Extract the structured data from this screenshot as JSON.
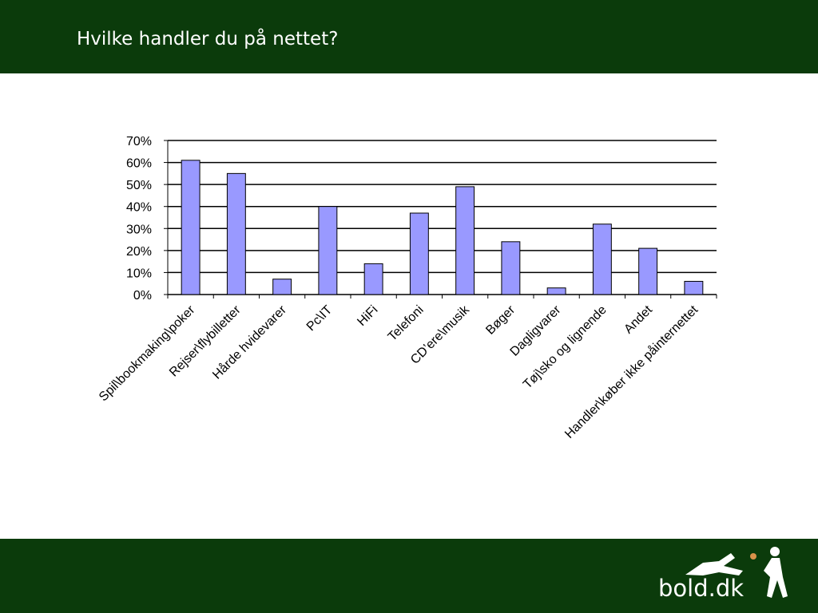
{
  "chart_data": {
    "type": "bar",
    "title": "Hvilke handler du på nettet?",
    "categories": [
      "Spil\\bookmaking\\poker",
      "Rejser\\flybilletter",
      "Hårde hvidevarer",
      "Pc\\IT",
      "HiFi",
      "Telefoni",
      "CD’ere\\musik",
      "Bøger",
      "Dagligvarer",
      "Tøj\\sko og lignende",
      "Andet",
      "Handler\\køber ikke påinternettet"
    ],
    "values": [
      61,
      55,
      7,
      40,
      14,
      37,
      49,
      24,
      3,
      32,
      21,
      6
    ],
    "color": "#9999ff",
    "ylim": [
      0,
      70
    ],
    "yticks": [
      {
        "value": 0,
        "label": "0%"
      },
      {
        "value": 10,
        "label": "10%"
      },
      {
        "value": 20,
        "label": "20%"
      },
      {
        "value": 30,
        "label": "30%"
      },
      {
        "value": 40,
        "label": "40%"
      },
      {
        "value": 50,
        "label": "50%"
      },
      {
        "value": 60,
        "label": "60%"
      },
      {
        "value": 70,
        "label": "70%"
      }
    ],
    "grid": true
  },
  "footer": {
    "logo": "bold.dk"
  }
}
